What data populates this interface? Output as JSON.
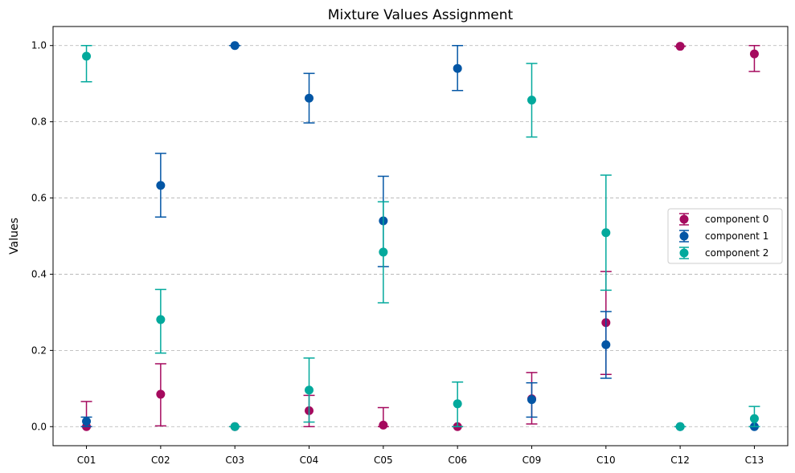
{
  "chart_data": {
    "type": "scatter",
    "title": "Mixture Values Assignment",
    "xlabel": "",
    "ylabel": "Values",
    "categories": [
      "C01",
      "C02",
      "C03",
      "C04",
      "C05",
      "C06",
      "C09",
      "C10",
      "C12",
      "C13"
    ],
    "ylim": [
      -0.05,
      1.05
    ],
    "yticks": [
      "0.0",
      "0.2",
      "0.4",
      "0.6",
      "0.8",
      "1.0"
    ],
    "grid": "y-dashed",
    "legend_position": "center-right",
    "series": [
      {
        "name": "component 0",
        "color": "#a50a5e",
        "values": [
          0.0,
          0.085,
          0.0,
          0.042,
          0.004,
          0.0,
          0.073,
          0.273,
          0.998,
          0.978
        ],
        "err_low": [
          0.0,
          0.002,
          0.0,
          0.0,
          0.0,
          0.0,
          0.007,
          0.137,
          0.998,
          0.932
        ],
        "err_high": [
          0.066,
          0.165,
          0.0,
          0.082,
          0.05,
          0.0,
          0.142,
          0.407,
          0.998,
          1.0
        ]
      },
      {
        "name": "component 1",
        "color": "#0356a5",
        "values": [
          0.014,
          0.633,
          1.0,
          0.862,
          0.54,
          0.94,
          0.071,
          0.215,
          0.0,
          0.0
        ],
        "err_low": [
          0.0,
          0.55,
          1.0,
          0.797,
          0.42,
          0.882,
          0.025,
          0.127,
          0.0,
          0.0
        ],
        "err_high": [
          0.025,
          0.717,
          1.0,
          0.927,
          0.657,
          1.0,
          0.115,
          0.302,
          0.0,
          0.0
        ]
      },
      {
        "name": "component 2",
        "color": "#02a99c",
        "values": [
          0.972,
          0.281,
          0.0,
          0.096,
          0.458,
          0.06,
          0.857,
          0.509,
          0.0,
          0.021
        ],
        "err_low": [
          0.905,
          0.193,
          0.0,
          0.012,
          0.325,
          0.0,
          0.76,
          0.358,
          0.0,
          0.0
        ],
        "err_high": [
          1.0,
          0.36,
          0.0,
          0.18,
          0.59,
          0.117,
          0.953,
          0.66,
          0.0,
          0.053
        ]
      }
    ]
  }
}
